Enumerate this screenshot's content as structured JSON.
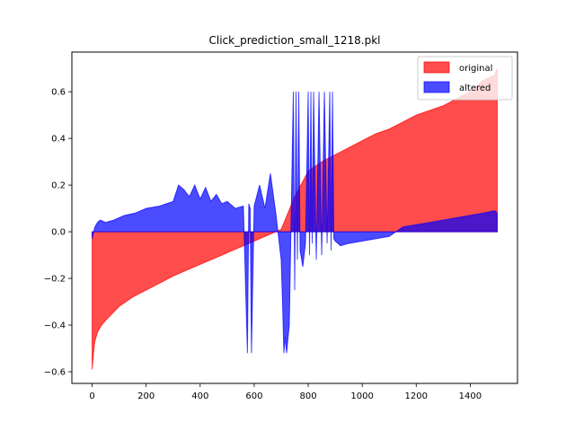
{
  "chart_data": {
    "type": "area",
    "title": "Click_prediction_small_1218.pkl",
    "xlabel": "",
    "ylabel": "",
    "xlim": [
      -75,
      1575
    ],
    "ylim": [
      -0.65,
      0.77
    ],
    "xticks": [
      0,
      200,
      400,
      600,
      800,
      1000,
      1200,
      1400
    ],
    "yticks": [
      -0.6,
      -0.4,
      -0.2,
      0.0,
      0.2,
      0.4,
      0.6
    ],
    "ytick_labels": [
      "−0.6",
      "−0.4",
      "−0.2",
      "0.0",
      "0.2",
      "0.4",
      "0.6"
    ],
    "grid": false,
    "legend_position": "top-right",
    "series": [
      {
        "name": "original",
        "color": "#ff0000",
        "opacity": 0.7,
        "x": [
          0,
          5,
          10,
          20,
          35,
          50,
          75,
          100,
          150,
          200,
          250,
          300,
          350,
          400,
          450,
          500,
          550,
          600,
          650,
          700,
          750,
          800,
          850,
          900,
          950,
          1000,
          1050,
          1100,
          1150,
          1200,
          1250,
          1300,
          1350,
          1400,
          1450,
          1490,
          1500
        ],
        "values": [
          -0.59,
          -0.52,
          -0.47,
          -0.43,
          -0.4,
          -0.38,
          -0.35,
          -0.32,
          -0.28,
          -0.25,
          -0.22,
          -0.19,
          -0.165,
          -0.14,
          -0.115,
          -0.09,
          -0.065,
          -0.04,
          -0.015,
          0.01,
          0.15,
          0.26,
          0.3,
          0.33,
          0.36,
          0.39,
          0.42,
          0.44,
          0.47,
          0.5,
          0.52,
          0.54,
          0.57,
          0.6,
          0.65,
          0.67,
          0.7
        ]
      },
      {
        "name": "altered",
        "color": "#0000ff",
        "opacity": 0.7,
        "x": [
          0,
          10,
          20,
          30,
          50,
          80,
          120,
          160,
          200,
          250,
          300,
          320,
          340,
          360,
          380,
          400,
          420,
          440,
          460,
          480,
          500,
          530,
          560,
          575,
          580,
          585,
          590,
          600,
          620,
          640,
          660,
          680,
          700,
          705,
          710,
          715,
          720,
          730,
          745,
          750,
          755,
          760,
          765,
          770,
          780,
          790,
          800,
          805,
          810,
          815,
          820,
          830,
          840,
          850,
          860,
          870,
          880,
          885,
          890,
          895,
          900,
          920,
          950,
          1000,
          1050,
          1100,
          1150,
          1200,
          1250,
          1300,
          1350,
          1400,
          1450,
          1490,
          1500
        ],
        "values": [
          -0.03,
          0.02,
          0.04,
          0.05,
          0.04,
          0.05,
          0.07,
          0.08,
          0.1,
          0.11,
          0.13,
          0.2,
          0.18,
          0.15,
          0.2,
          0.14,
          0.19,
          0.13,
          0.16,
          0.12,
          0.13,
          0.1,
          0.11,
          -0.52,
          0.12,
          0.1,
          -0.52,
          0.11,
          0.2,
          0.1,
          0.25,
          0.08,
          -0.12,
          -0.3,
          -0.52,
          -0.45,
          -0.52,
          -0.4,
          0.6,
          -0.25,
          0.6,
          -0.12,
          0.6,
          -0.08,
          -0.15,
          -0.05,
          0.6,
          -0.1,
          0.6,
          -0.05,
          0.6,
          -0.12,
          0.6,
          -0.1,
          0.6,
          -0.05,
          0.6,
          -0.08,
          0.6,
          -0.03,
          -0.04,
          -0.06,
          -0.05,
          -0.04,
          -0.03,
          -0.02,
          0.02,
          0.03,
          0.04,
          0.05,
          0.06,
          0.07,
          0.08,
          0.09,
          0.08
        ]
      }
    ]
  }
}
